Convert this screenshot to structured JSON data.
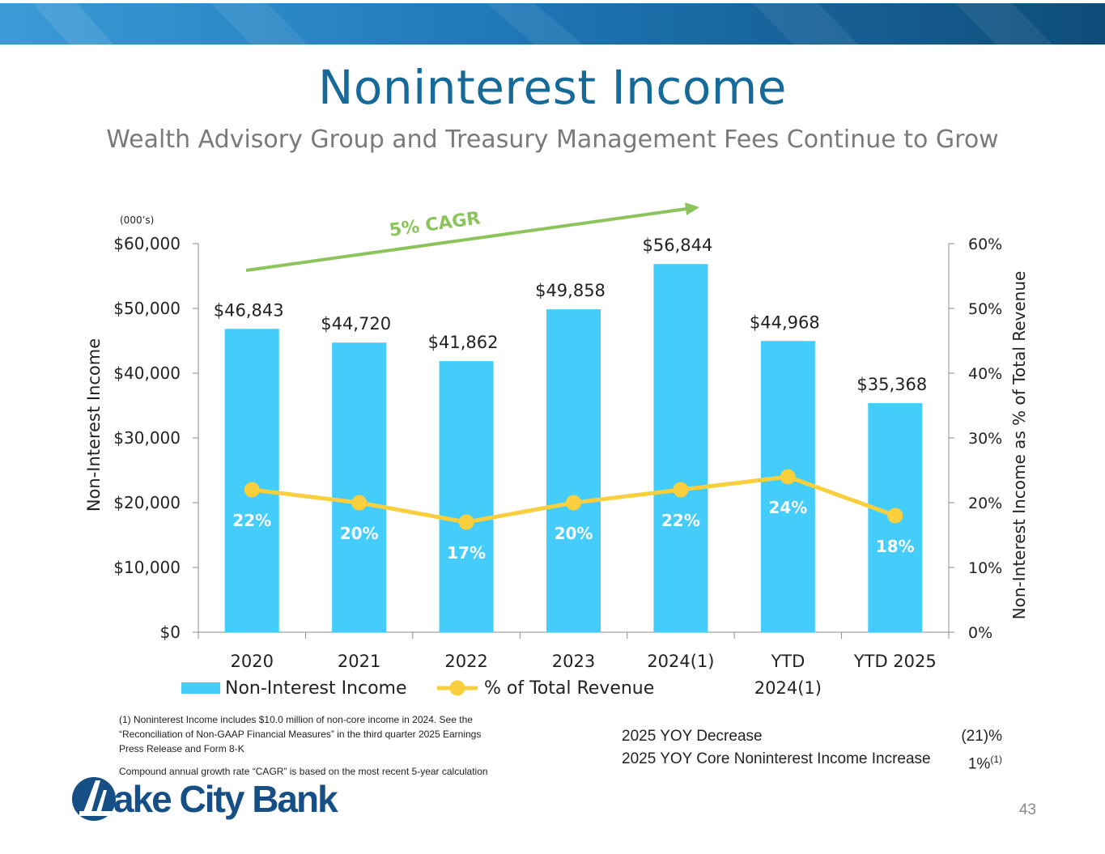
{
  "header": {
    "title": "Noninterest Income",
    "subtitle": "Wealth Advisory Group and Treasury Management Fees Continue to Grow"
  },
  "colors": {
    "bar": "#44ccfb",
    "line": "#f9cf3d",
    "cagr": "#8ac45a",
    "title": "#166a9a",
    "banner_dark": "#0f4c78",
    "banner_light": "#3a9bd6"
  },
  "chart_data": {
    "type": "bar",
    "units_note": "(000’s)",
    "categories": [
      [
        "2020"
      ],
      [
        "2021"
      ],
      [
        "2022"
      ],
      [
        "2023"
      ],
      [
        "2024(1)"
      ],
      [
        "YTD",
        "2024(1)"
      ],
      [
        "YTD 2025"
      ]
    ],
    "series": [
      {
        "name": "Non-Interest Income",
        "type": "bar",
        "axis": "left",
        "values": [
          46843,
          44720,
          41862,
          49858,
          56844,
          44968,
          35368
        ],
        "labels": [
          "$46,843",
          "$44,720",
          "$41,862",
          "$49,858",
          "$56,844",
          "$44,968",
          "$35,368"
        ]
      },
      {
        "name": "% of Total Revenue",
        "type": "line",
        "axis": "right",
        "values": [
          22,
          20,
          17,
          20,
          22,
          24,
          18
        ],
        "labels": [
          "22%",
          "20%",
          "17%",
          "20%",
          "22%",
          "24%",
          "18%"
        ]
      }
    ],
    "left_axis": {
      "label": "Non-Interest Income",
      "min": 0,
      "max": 60000,
      "ticks": [
        "$0",
        "$10,000",
        "$20,000",
        "$30,000",
        "$40,000",
        "$50,000",
        "$60,000"
      ]
    },
    "right_axis": {
      "label": "Non-Interest Income as % of Total Revenue",
      "min": 0,
      "max": 60,
      "ticks": [
        "0%",
        "10%",
        "20%",
        "30%",
        "40%",
        "50%",
        "60%"
      ]
    },
    "annotation": "5% CAGR",
    "legend_position": "bottom-left"
  },
  "footnotes": {
    "note1": "(1) Noninterest Income includes $10.0 million of non-core income in 2024. See the “Reconciliation of Non-GAAP Financial Measures” in the third quarter 2025 Earnings Press Release and Form 8-K",
    "cagr": "Compound annual growth rate “CAGR” is based on the most recent 5-year calculation"
  },
  "yoy": [
    {
      "label": "2025 YOY Decrease",
      "value": "(21)%",
      "sup": ""
    },
    {
      "label": "2025 YOY Core Noninterest Income Increase",
      "value": "1%",
      "sup": "(1)"
    }
  ],
  "logo": {
    "text": "ake City Bank"
  },
  "page_number": "43"
}
